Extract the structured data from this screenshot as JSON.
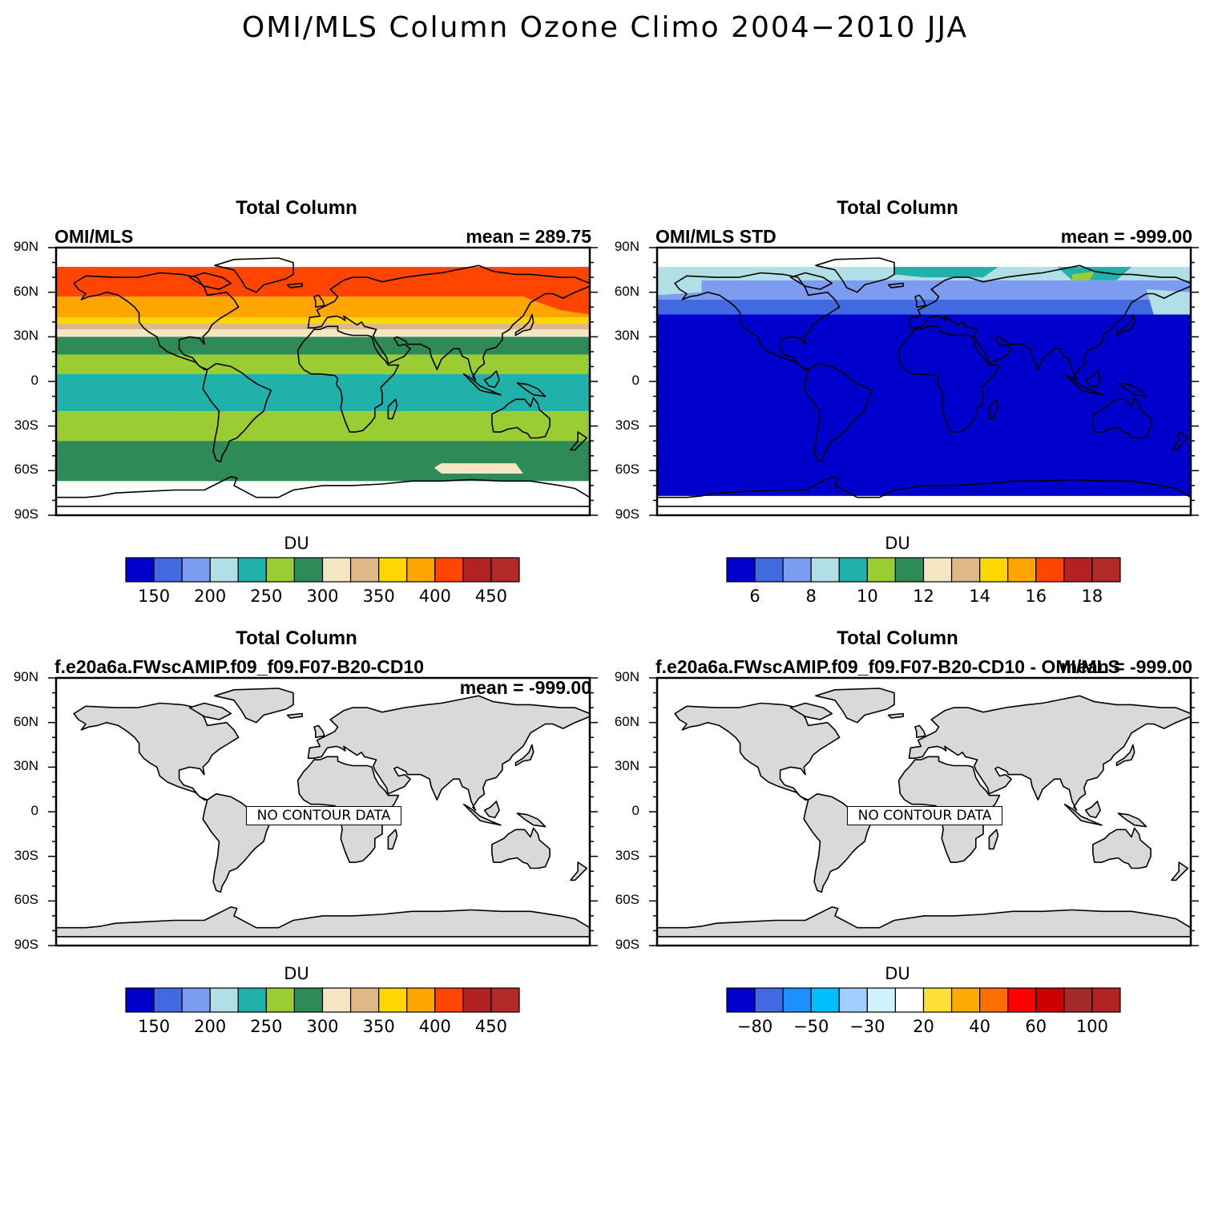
{
  "figure_title": "OMI/MLS Column Ozone Climo 2004−2010 JJA",
  "lat_labels": [
    "90N",
    "60N",
    "30N",
    "0",
    "30S",
    "60S",
    "90S"
  ],
  "colors": {
    "palette_ozone": [
      "#0000cd",
      "#4169e1",
      "#7b9cf0",
      "#b0dfe6",
      "#20b2aa",
      "#9acd32",
      "#2e8b57",
      "#f5e6c3",
      "#deb887",
      "#ffd700",
      "#ffa500",
      "#ff4500",
      "#b22222",
      "#b22a2a"
    ],
    "palette_diff": [
      "#0000cd",
      "#4169e1",
      "#1e90ff",
      "#00bfff",
      "#a0cfff",
      "#d0f4ff",
      "#ffffff",
      "#ffe135",
      "#ffaa00",
      "#ff6e00",
      "#ff0000",
      "#cd0000",
      "#a52a2a",
      "#b22222"
    ],
    "land": "#d9d9d9"
  },
  "panels": [
    {
      "title": "Total Column",
      "left_string": "OMI/MLS",
      "right_string": "mean = 289.75",
      "colorbar_label": "DU",
      "colorbar_ticks": [
        "150",
        "200",
        "250",
        "300",
        "350",
        "400",
        "450"
      ],
      "no_data_text": ""
    },
    {
      "title": "Total Column",
      "left_string": "OMI/MLS STD",
      "right_string": "mean = -999.00",
      "colorbar_label": "DU",
      "colorbar_ticks": [
        "6",
        "8",
        "10",
        "12",
        "14",
        "16",
        "18"
      ],
      "no_data_text": ""
    },
    {
      "title": "Total Column",
      "left_string": "f.e20a6a.FWscAMIP.f09_f09.F07-B20-CD10",
      "right_string": "mean = -999.00",
      "colorbar_label": "DU",
      "colorbar_ticks": [
        "150",
        "200",
        "250",
        "300",
        "350",
        "400",
        "450"
      ],
      "no_data_text": "NO CONTOUR DATA"
    },
    {
      "title": "Total Column",
      "left_string": "f.e20a6a.FWscAMIP.f09_f09.F07-B20-CD10 - OMI/MLS",
      "right_string": "mean = -999.00",
      "colorbar_label": "DU",
      "colorbar_ticks": [
        "−80",
        "−50",
        "−30",
        "20",
        "40",
        "60",
        "100"
      ],
      "no_data_text": "NO CONTOUR DATA"
    }
  ]
}
